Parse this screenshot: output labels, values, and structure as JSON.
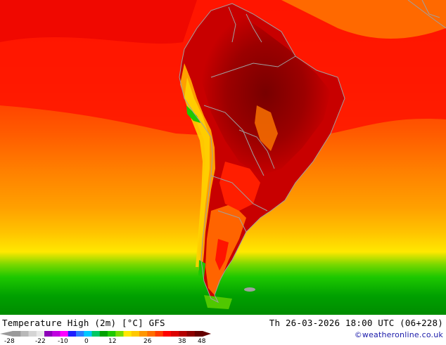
{
  "map": {
    "title": "Temperature High (2m) [°C] GFS",
    "datetime": "Th 26-03-2026 18:00 UTC (06+228)",
    "credit": "©weatheronline.co.uk",
    "legend": {
      "ticks": [
        "-28",
        "-22",
        "-10",
        "0",
        "12",
        "26",
        "38",
        "48"
      ],
      "colors": [
        "#9a9a9a",
        "#b8b8b8",
        "#d4d4d4",
        "#e8e8e8",
        "#8c00b8",
        "#c000e0",
        "#ff00ff",
        "#1e1eff",
        "#2a7dff",
        "#00c8ff",
        "#00c864",
        "#00a000",
        "#1ec800",
        "#78dc00",
        "#ffe800",
        "#ffc800",
        "#ff9600",
        "#ff6e00",
        "#ff3c00",
        "#ff0000",
        "#dc0000",
        "#b40000",
        "#8c0000",
        "#640000"
      ]
    }
  }
}
